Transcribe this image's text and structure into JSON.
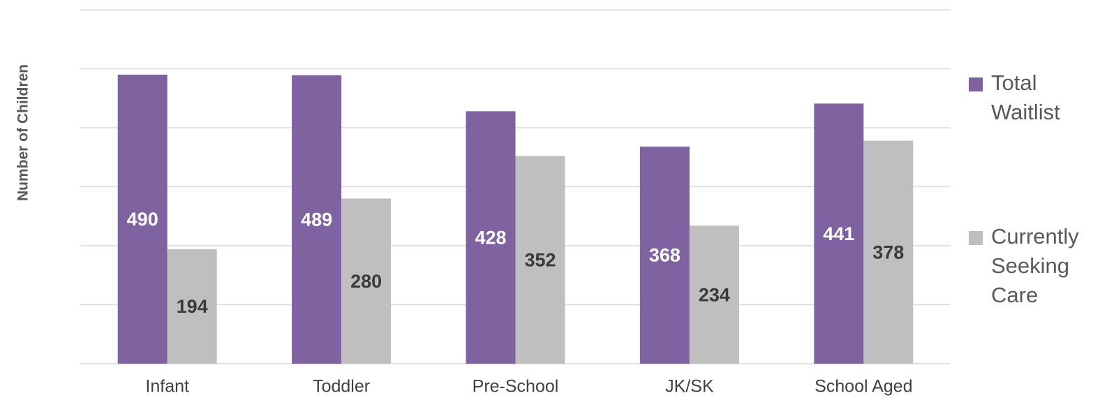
{
  "chart_data": {
    "type": "bar",
    "y_label": "Number of Children",
    "categories": [
      "Infant",
      "Toddler",
      "Pre-School",
      "JK/SK",
      "School Aged"
    ],
    "series": [
      {
        "name": "Total Waitlist",
        "color": "#7f63a1",
        "label_color": "#ffffff",
        "values": [
          490,
          489,
          428,
          368,
          441
        ]
      },
      {
        "name": "Currently Seeking Care",
        "color": "#bfbfbf",
        "label_color": "#3a3a3a",
        "values": [
          194,
          280,
          352,
          234,
          378
        ]
      }
    ],
    "ylim": [
      0,
      600
    ],
    "yticks": [
      0,
      100,
      200,
      300,
      400,
      500,
      600
    ],
    "grid": true,
    "legend": "right"
  }
}
